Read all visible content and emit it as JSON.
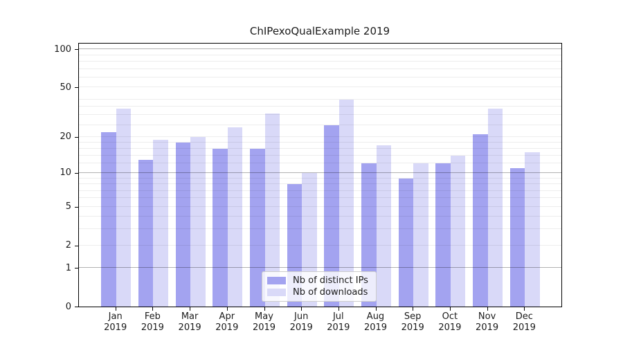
{
  "title": "ChIPexoQualExample 2019",
  "chart_data": {
    "type": "bar",
    "title": "ChIPexoQualExample 2019",
    "categories": [
      "Jan",
      "Feb",
      "Mar",
      "Apr",
      "May",
      "Jun",
      "Jul",
      "Aug",
      "Sep",
      "Oct",
      "Nov",
      "Dec"
    ],
    "x_tick_second_line": "2019",
    "series": [
      {
        "name": "Nb of distinct IPs",
        "color": "#a3a3f0",
        "values": [
          22,
          13,
          18,
          16,
          16,
          8,
          25,
          12,
          9,
          12,
          21,
          11
        ]
      },
      {
        "name": "Nb of downloads",
        "color": "#d9d9f8",
        "values": [
          34,
          19,
          20,
          24,
          31,
          10,
          40,
          17,
          12,
          14,
          34,
          15
        ]
      }
    ],
    "xlabel": "",
    "ylabel": "",
    "yscale": "log1p",
    "ylim": [
      0,
      111
    ],
    "y_ticks": [
      100,
      50,
      20,
      10,
      5,
      2,
      1,
      0
    ],
    "y_major_gridlines": [
      1,
      10,
      100
    ],
    "y_minor_gridlines": [
      2,
      3,
      4,
      5,
      6,
      7,
      8,
      9,
      12,
      14,
      16,
      18,
      20,
      25,
      30,
      35,
      40,
      50,
      60,
      70,
      80,
      90
    ],
    "grid": true,
    "legend_position": "lower center"
  },
  "colors": {
    "spine": "#000000",
    "text": "#1a1a1a",
    "major_grid": "rgba(0,0,0,0.30)",
    "minor_grid": "rgba(0,0,0,0.07)",
    "legend_border": "#cccccc"
  }
}
